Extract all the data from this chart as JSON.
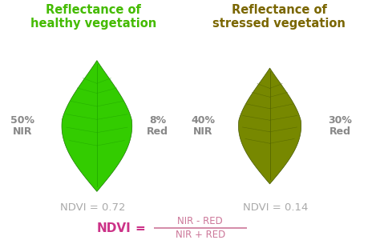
{
  "bg_color": "#ffffff",
  "title_healthy": "Reflectance of\nhealthy vegetation",
  "title_stressed": "Reflectance of\nstressed vegetation",
  "title_healthy_color": "#44bb00",
  "title_stressed_color": "#7a6600",
  "healthy_nir_pct": "50%",
  "healthy_nir_lbl": "NIR",
  "healthy_red_pct": "8%",
  "healthy_red_lbl": "Red",
  "stressed_nir_pct": "40%",
  "stressed_nir_lbl": "NIR",
  "stressed_red_pct": "30%",
  "stressed_red_lbl": "Red",
  "nir_red_color": "#888888",
  "ndvi_healthy": "NDVI = 0.72",
  "ndvi_stressed": "NDVI = 0.14",
  "ndvi_val_color": "#aaaaaa",
  "formula_ndvi_color": "#cc3388",
  "formula_frac_color": "#cc7799",
  "formula_numerator": "NIR - RED",
  "formula_denominator": "NIR + RED",
  "healthy_leaf_color": "#33cc00",
  "healthy_leaf_color2": "#22aa00",
  "stressed_leaf_color": "#778800",
  "stressed_leaf_color2": "#556600",
  "leaf_edge_color": "#1a7700",
  "stressed_leaf_edge_color": "#445500"
}
